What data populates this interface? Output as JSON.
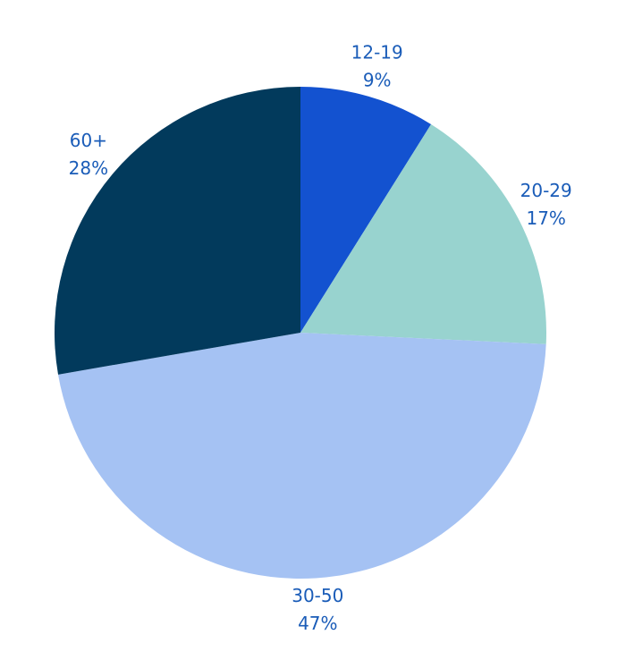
{
  "chart_data": {
    "type": "pie",
    "title": "",
    "label_color": "#1a5cb8",
    "slices": [
      {
        "category": "12-19",
        "value": 9,
        "label": "9%",
        "color": "#1352d0"
      },
      {
        "category": "20-29",
        "value": 17,
        "label": "17%",
        "color": "#98d3cf"
      },
      {
        "category": "30-50",
        "value": 47,
        "label": "47%",
        "color": "#a5c2f3"
      },
      {
        "category": "60+",
        "value": 28,
        "label": "28%",
        "color": "#023a5c"
      }
    ],
    "start_angle": "12 o'clock",
    "direction": "clockwise"
  }
}
